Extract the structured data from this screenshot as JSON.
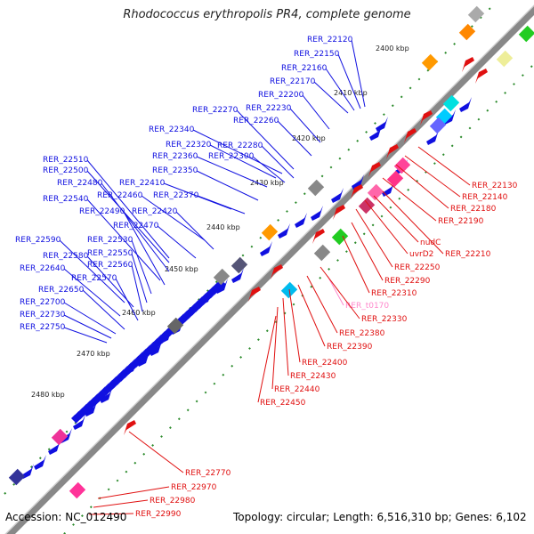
{
  "title": "Rhodococcus erythropolis PR4, complete genome",
  "footer": {
    "accession": "Accession: NC_012490",
    "info": "Topology: circular; Length: 6,516,310 bp; Genes: 6,102"
  },
  "colors": {
    "backbone": "#808080",
    "plus_strand": "#1010e0",
    "minus_strand": "#e01010",
    "rna_gene": "#ff88cc"
  },
  "kbp_ticks": [
    "2400 kbp",
    "2410 kbp",
    "2420 kbp",
    "2430 kbp",
    "2440 kbp",
    "2450 kbp",
    "2460 kbp",
    "2470 kbp",
    "2480 kbp"
  ],
  "plus_labels": [
    "RER_22120",
    "RER_22150",
    "RER_22160",
    "RER_22170",
    "RER_22200",
    "RER_22230",
    "RER_22260",
    "RER_22270",
    "RER_22340",
    "RER_22320",
    "RER_22280",
    "RER_22360",
    "RER_22300",
    "RER_22350",
    "RER_22410",
    "RER_22370",
    "RER_22460",
    "RER_22420",
    "RER_22470",
    "RER_22510",
    "RER_22500",
    "RER_22480",
    "RER_22540",
    "RER_22490",
    "RER_22590",
    "RER_22530",
    "RER_22580",
    "RER_22550",
    "RER_22640",
    "RER_22560",
    "RER_22570",
    "RER_22650",
    "RER_22700",
    "RER_22730",
    "RER_22750"
  ],
  "minus_labels": [
    "RER_22130",
    "RER_22140",
    "RER_22180",
    "RER_22190",
    "nudC",
    "RER_22210",
    "uvrD2",
    "RER_22250",
    "RER_22290",
    "RER_22310",
    "RER_t0170",
    "RER_22330",
    "RER_22380",
    "RER_22390",
    "RER_22400",
    "RER_22430",
    "RER_22440",
    "RER_22450",
    "RER_22770",
    "RER_22970",
    "RER_22980",
    "RER_22990"
  ]
}
